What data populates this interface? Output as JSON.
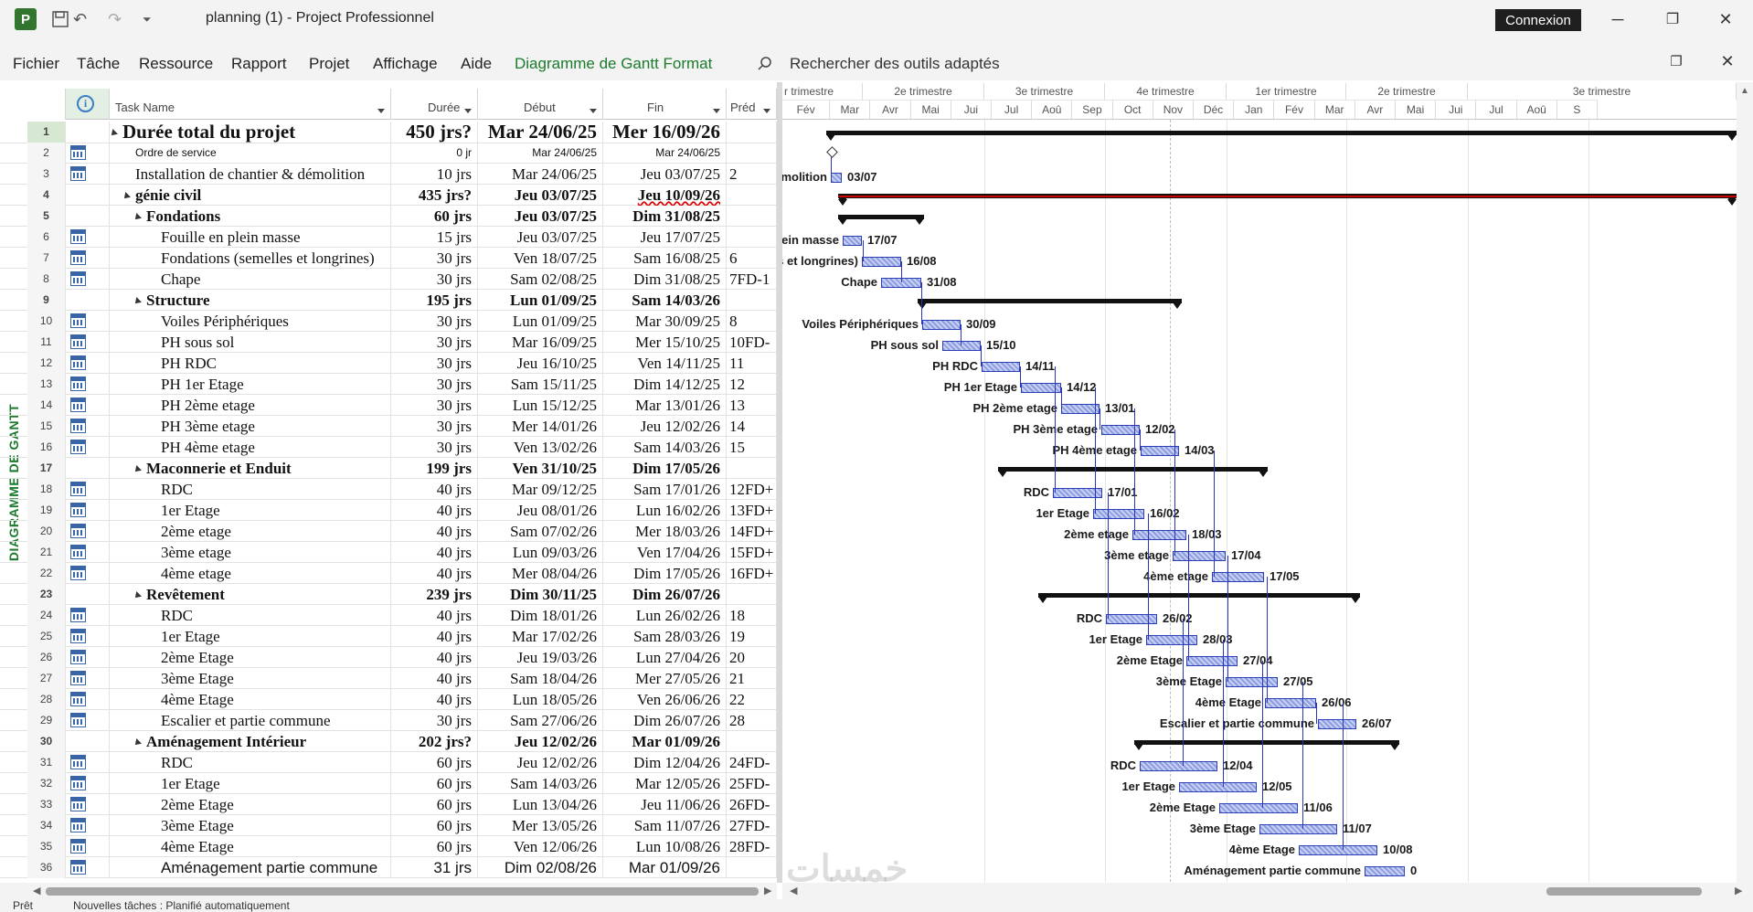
{
  "window": {
    "title": "planning (1)  -  Project Professionnel",
    "connect_label": "Connexion",
    "logo_letter": "P"
  },
  "menu": {
    "items": [
      "Fichier",
      "Tâche",
      "Ressource",
      "Rapport",
      "Projet",
      "Affichage",
      "Aide"
    ],
    "context_tab": "Diagramme de Gantt Format",
    "search_placeholder": "Rechercher des outils adaptés"
  },
  "side_label": "DIAGRAMME DE GANTT",
  "grid": {
    "headers": {
      "name": "Task Name",
      "duration": "Durée",
      "start": "Début",
      "finish": "Fin",
      "pred": "Préd"
    },
    "rows": [
      {
        "id": "1",
        "name": "Durée total du projet",
        "dur": "450 jrs?",
        "start": "Mar 24/06/25",
        "finish": "Mer 16/09/26",
        "pred": "",
        "level": 0,
        "summary": true
      },
      {
        "id": "2",
        "name": "Ordre de service",
        "dur": "0 jr",
        "start": "Mar 24/06/25",
        "finish": "Mar 24/06/25",
        "pred": "",
        "level": 1,
        "small": true
      },
      {
        "id": "3",
        "name": "Installation de chantier & démolition",
        "dur": "10 jrs",
        "start": "Mar 24/06/25",
        "finish": "Jeu 03/07/25",
        "pred": "2",
        "level": 1
      },
      {
        "id": "4",
        "name": "génie civil",
        "dur": "435 jrs?",
        "start": "Jeu 03/07/25",
        "finish": "Jeu 10/09/26",
        "pred": "",
        "level": 1,
        "summary": true
      },
      {
        "id": "5",
        "name": "Fondations",
        "dur": "60 jrs",
        "start": "Jeu 03/07/25",
        "finish": "Dim 31/08/25",
        "pred": "",
        "level": 2,
        "summary": true
      },
      {
        "id": "6",
        "name": "Fouille en plein masse",
        "dur": "15 jrs",
        "start": "Jeu 03/07/25",
        "finish": "Jeu 17/07/25",
        "pred": "",
        "level": 3
      },
      {
        "id": "7",
        "name": "Fondations (semelles et longrines)",
        "dur": "30 jrs",
        "start": "Ven 18/07/25",
        "finish": "Sam 16/08/25",
        "pred": "6",
        "level": 3
      },
      {
        "id": "8",
        "name": "Chape",
        "dur": "30 jrs",
        "start": "Sam 02/08/25",
        "finish": "Dim 31/08/25",
        "pred": "7FD-1",
        "level": 3
      },
      {
        "id": "9",
        "name": "Structure",
        "dur": "195 jrs",
        "start": "Lun 01/09/25",
        "finish": "Sam 14/03/26",
        "pred": "",
        "level": 2,
        "summary": true
      },
      {
        "id": "10",
        "name": "Voiles Périphériques",
        "dur": "30 jrs",
        "start": "Lun 01/09/25",
        "finish": "Mar 30/09/25",
        "pred": "8",
        "level": 3
      },
      {
        "id": "11",
        "name": "PH sous sol",
        "dur": "30 jrs",
        "start": "Mar 16/09/25",
        "finish": "Mer 15/10/25",
        "pred": "10FD-",
        "level": 3
      },
      {
        "id": "12",
        "name": "PH RDC",
        "dur": "30 jrs",
        "start": "Jeu 16/10/25",
        "finish": "Ven 14/11/25",
        "pred": "11",
        "level": 3
      },
      {
        "id": "13",
        "name": "PH 1er Etage",
        "dur": "30 jrs",
        "start": "Sam 15/11/25",
        "finish": "Dim 14/12/25",
        "pred": "12",
        "level": 3
      },
      {
        "id": "14",
        "name": "PH 2ème etage",
        "dur": "30 jrs",
        "start": "Lun 15/12/25",
        "finish": "Mar 13/01/26",
        "pred": "13",
        "level": 3
      },
      {
        "id": "15",
        "name": "PH 3ème etage",
        "dur": "30 jrs",
        "start": "Mer 14/01/26",
        "finish": "Jeu 12/02/26",
        "pred": "14",
        "level": 3
      },
      {
        "id": "16",
        "name": "PH 4ème etage",
        "dur": "30 jrs",
        "start": "Ven 13/02/26",
        "finish": "Sam 14/03/26",
        "pred": "15",
        "level": 3
      },
      {
        "id": "17",
        "name": "Maconnerie et Enduit",
        "dur": "199 jrs",
        "start": "Ven 31/10/25",
        "finish": "Dim 17/05/26",
        "pred": "",
        "level": 2,
        "summary": true
      },
      {
        "id": "18",
        "name": "RDC",
        "dur": "40 jrs",
        "start": "Mar 09/12/25",
        "finish": "Sam 17/01/26",
        "pred": "12FD+",
        "level": 3
      },
      {
        "id": "19",
        "name": "1er Etage",
        "dur": "40 jrs",
        "start": "Jeu 08/01/26",
        "finish": "Lun 16/02/26",
        "pred": "13FD+",
        "level": 3
      },
      {
        "id": "20",
        "name": "2ème etage",
        "dur": "40 jrs",
        "start": "Sam 07/02/26",
        "finish": "Mer 18/03/26",
        "pred": "14FD+",
        "level": 3
      },
      {
        "id": "21",
        "name": "3ème etage",
        "dur": "40 jrs",
        "start": "Lun 09/03/26",
        "finish": "Ven 17/04/26",
        "pred": "15FD+",
        "level": 3
      },
      {
        "id": "22",
        "name": "4ème etage",
        "dur": "40 jrs",
        "start": "Mer 08/04/26",
        "finish": "Dim 17/05/26",
        "pred": "16FD+",
        "level": 3
      },
      {
        "id": "23",
        "name": "Revêtement",
        "dur": "239 jrs",
        "start": "Dim 30/11/25",
        "finish": "Dim 26/07/26",
        "pred": "",
        "level": 2,
        "summary": true
      },
      {
        "id": "24",
        "name": "RDC",
        "dur": "40 jrs",
        "start": "Dim 18/01/26",
        "finish": "Lun 26/02/26",
        "pred": "18",
        "level": 3
      },
      {
        "id": "25",
        "name": "1er Etage",
        "dur": "40 jrs",
        "start": "Mar 17/02/26",
        "finish": "Sam 28/03/26",
        "pred": "19",
        "level": 3
      },
      {
        "id": "26",
        "name": "2ème Etage",
        "dur": "40 jrs",
        "start": "Jeu 19/03/26",
        "finish": "Lun 27/04/26",
        "pred": "20",
        "level": 3
      },
      {
        "id": "27",
        "name": "3ème Etage",
        "dur": "40 jrs",
        "start": "Sam 18/04/26",
        "finish": "Mer 27/05/26",
        "pred": "21",
        "level": 3
      },
      {
        "id": "28",
        "name": "4ème Etage",
        "dur": "40 jrs",
        "start": "Lun 18/05/26",
        "finish": "Ven 26/06/26",
        "pred": "22",
        "level": 3
      },
      {
        "id": "29",
        "name": "Escalier et partie commune",
        "dur": "30 jrs",
        "start": "Sam 27/06/26",
        "finish": "Dim 26/07/26",
        "pred": "28",
        "level": 3
      },
      {
        "id": "30",
        "name": "Aménagement Intérieur",
        "dur": "202 jrs?",
        "start": "Jeu 12/02/26",
        "finish": "Mar 01/09/26",
        "pred": "",
        "level": 2,
        "summary": true
      },
      {
        "id": "31",
        "name": "RDC",
        "dur": "60 jrs",
        "start": "Jeu 12/02/26",
        "finish": "Dim 12/04/26",
        "pred": "24FD-",
        "level": 3
      },
      {
        "id": "32",
        "name": "1er Etage",
        "dur": "60 jrs",
        "start": "Sam 14/03/26",
        "finish": "Mar 12/05/26",
        "pred": "25FD-",
        "level": 3
      },
      {
        "id": "33",
        "name": "2ème Etage",
        "dur": "60 jrs",
        "start": "Lun 13/04/26",
        "finish": "Jeu 11/06/26",
        "pred": "26FD-",
        "level": 3
      },
      {
        "id": "34",
        "name": "3ème Etage",
        "dur": "60 jrs",
        "start": "Mer 13/05/26",
        "finish": "Sam 11/07/26",
        "pred": "27FD-",
        "level": 3
      },
      {
        "id": "35",
        "name": "4ème Etage",
        "dur": "60 jrs",
        "start": "Ven 12/06/26",
        "finish": "Lun 10/08/26",
        "pred": "28FD-",
        "level": 3
      },
      {
        "id": "36",
        "name": "Aménagement partie commune",
        "dur": "31 jrs",
        "start": "Dim 02/08/26",
        "finish": "Mar 01/09/26",
        "pred": "",
        "level": 3,
        "sans": true
      }
    ]
  },
  "timescale": {
    "quarters": [
      "r trimestre",
      "2e trimestre",
      "3e trimestre",
      "4e trimestre",
      "1er trimestre",
      "2e trimestre",
      "3e trimestre"
    ],
    "months": [
      "Fév",
      "Mar",
      "Avr",
      "Mai",
      "Jui",
      "Jul",
      "Aoû",
      "Sep",
      "Oct",
      "Nov",
      "Déc",
      "Jan",
      "Fév",
      "Mar",
      "Avr",
      "Mai",
      "Jui",
      "Jul",
      "Aoû",
      "S"
    ]
  },
  "gantt": {
    "labels": {
      "t3_left": "Installation de chantier & démolition",
      "t3_right": "03/07",
      "t6_left": "Fouille en plein masse",
      "t6_right": "17/07",
      "t7_left": "Fondations (semelles et longrines)",
      "t7_right": "16/08",
      "t8_left": "Chape",
      "t8_right": "31/08",
      "t10_left": "Voiles Périphériques",
      "t10_right": "30/09",
      "t11_left": "PH sous sol",
      "t11_right": "15/10",
      "t12_left": "PH RDC",
      "t12_right": "14/11",
      "t13_left": "PH 1er Etage",
      "t13_right": "14/12",
      "t14_left": "PH 2ème etage",
      "t14_right": "13/01",
      "t15_left": "PH 3ème etage",
      "t15_right": "12/02",
      "t16_left": "PH 4ème etage",
      "t16_right": "14/03",
      "t18_left": "RDC",
      "t18_right": "17/01",
      "t19_left": "1er Etage",
      "t19_right": "16/02",
      "t20_left": "2ème etage",
      "t20_right": "18/03",
      "t21_left": "3ème etage",
      "t21_right": "17/04",
      "t22_left": "4ème etage",
      "t22_right": "17/05",
      "t24_left": "RDC",
      "t24_right": "26/02",
      "t25_left": "1er Etage",
      "t25_right": "28/03",
      "t26_left": "2ème Etage",
      "t26_right": "27/04",
      "t27_left": "3ème Etage",
      "t27_right": "27/05",
      "t28_left": "4ème Etage",
      "t28_right": "26/06",
      "t29_left": "Escalier et partie commune",
      "t29_right": "26/07",
      "t31_left": "RDC",
      "t31_right": "12/04",
      "t32_left": "1er Etage",
      "t32_right": "12/05",
      "t33_left": "2ème Etage",
      "t33_right": "11/06",
      "t34_left": "3ème Etage",
      "t34_right": "11/07",
      "t35_left": "4ème Etage",
      "t35_right": "10/08",
      "t36_left": "Aménagement partie commune",
      "t36_right": "0"
    }
  },
  "status": {
    "ready": "Prêt",
    "new_tasks": "Nouvelles tâches : Planifié automatiquement"
  },
  "watermark": "خمسات"
}
